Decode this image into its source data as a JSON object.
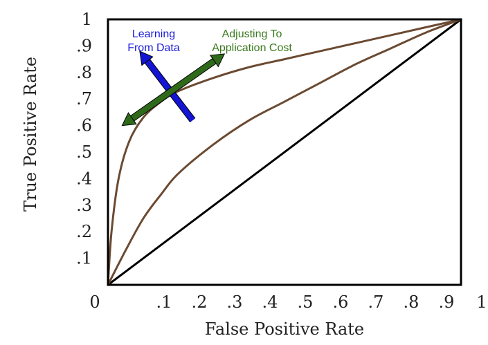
{
  "chart_data": {
    "type": "line",
    "xlabel": "False Positive Rate",
    "ylabel": "True Positive Rate",
    "xlim": [
      0,
      1
    ],
    "ylim": [
      0,
      1
    ],
    "x_ticks": [
      "0",
      ".1",
      ".2",
      ".3",
      ".4",
      ".5",
      ".6",
      ".7",
      ".8",
      ".9",
      "1"
    ],
    "y_ticks": [
      ".1",
      ".2",
      ".3",
      ".4",
      ".5",
      ".6",
      ".7",
      ".8",
      ".9",
      "1"
    ],
    "series": [
      {
        "color": "#000000",
        "x": [
          0,
          1
        ],
        "y": [
          0,
          1
        ]
      },
      {
        "color": "#6b4a32",
        "x": [
          0,
          0.05,
          0.1,
          0.15,
          0.2,
          0.3,
          0.4,
          0.5,
          0.6,
          0.7,
          0.8,
          0.9,
          1.0
        ],
        "y": [
          0,
          0.13,
          0.25,
          0.34,
          0.42,
          0.53,
          0.62,
          0.69,
          0.76,
          0.83,
          0.89,
          0.95,
          1.0
        ]
      },
      {
        "color": "#6b4a32",
        "x": [
          0,
          0.01,
          0.03,
          0.06,
          0.1,
          0.15,
          0.2,
          0.3,
          0.4,
          0.5,
          0.6,
          0.7,
          0.8,
          0.9,
          1.0
        ],
        "y": [
          0,
          0.2,
          0.4,
          0.54,
          0.63,
          0.69,
          0.73,
          0.78,
          0.82,
          0.85,
          0.88,
          0.91,
          0.94,
          0.97,
          1.0
        ]
      }
    ],
    "annotations": [
      {
        "text_lines": [
          "Learning",
          "From Data"
        ],
        "color": "#1a1ad9",
        "arrow_color": "#1414d4",
        "arrow": "single-headed",
        "arrow_from": [
          0.24,
          0.62
        ],
        "arrow_to": [
          0.09,
          0.88
        ]
      },
      {
        "text_lines": [
          "Adjusting To",
          "Application Cost"
        ],
        "color": "#3a7a1e",
        "arrow_color": "#2f6a1a",
        "arrow": "double-headed",
        "arrow_from": [
          0.04,
          0.6
        ],
        "arrow_to": [
          0.33,
          0.87
        ]
      }
    ]
  }
}
